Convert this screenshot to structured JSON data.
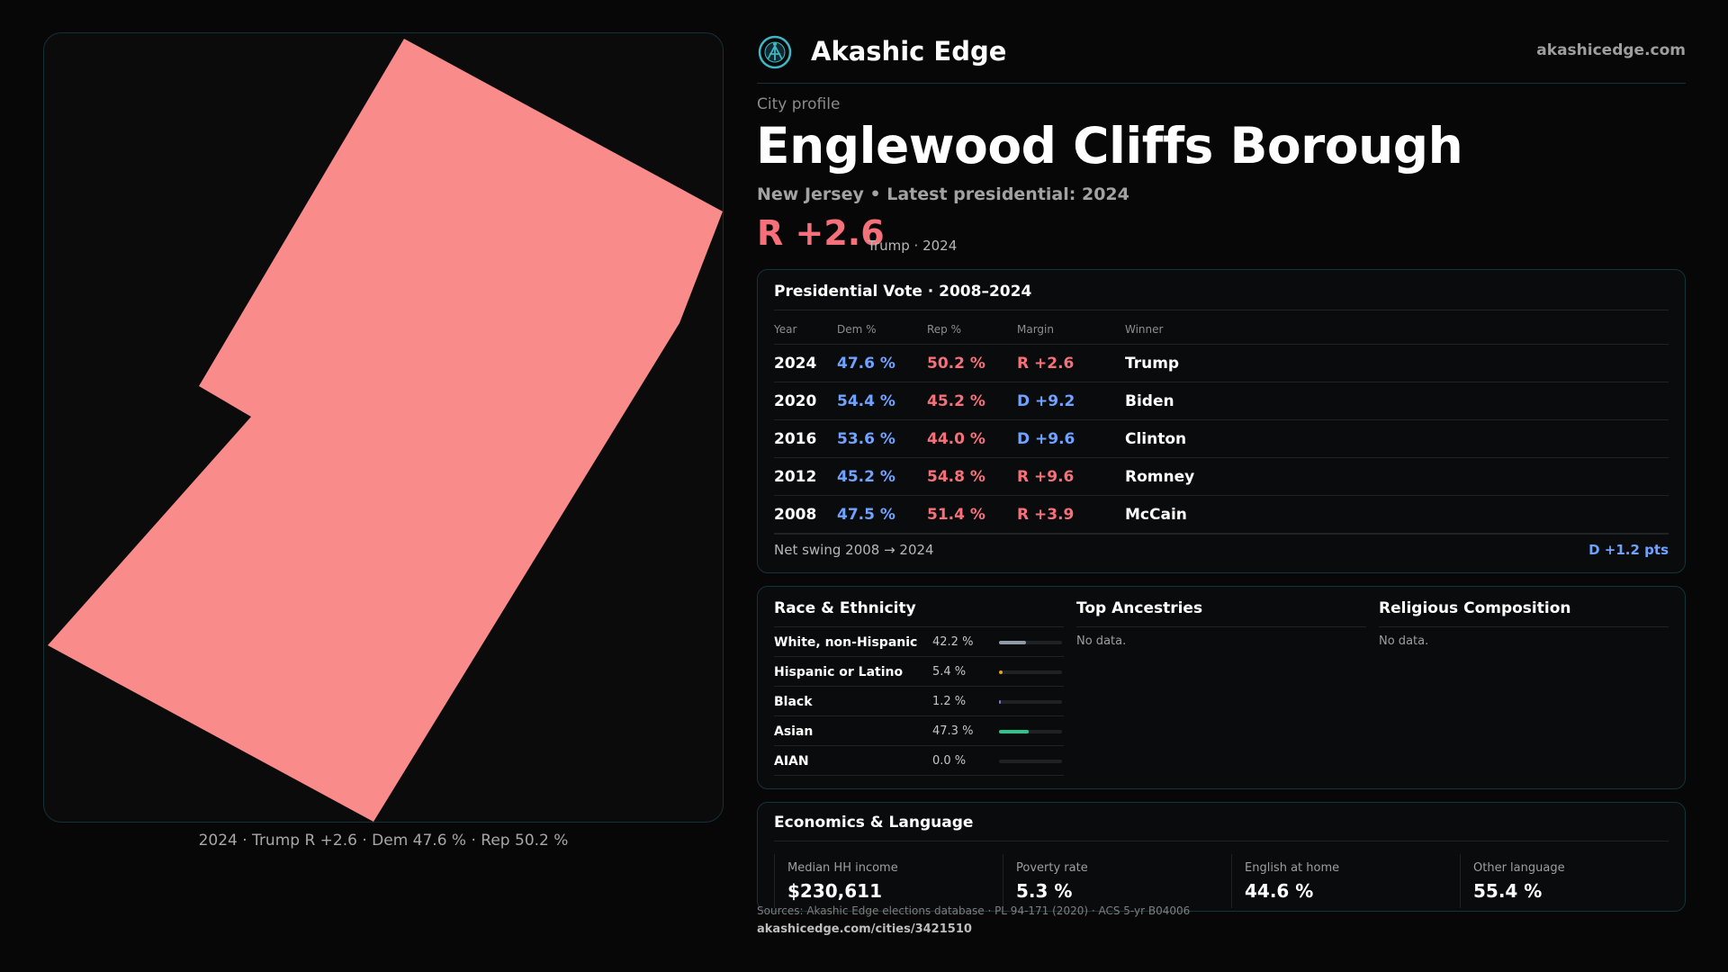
{
  "brand": {
    "name": "Akashic Edge",
    "site": "akashicedge.com"
  },
  "profile": {
    "label": "City profile",
    "city": "Englewood Cliffs Borough",
    "subtitle": "New Jersey • Latest presidential: 2024",
    "margin": "R +2.6",
    "margin_note": "Trump · 2024"
  },
  "map": {
    "fill_color": "#f98b8b",
    "caption": "2024 · Trump R +2.6 · Dem 47.6 % · Rep 50.2 %"
  },
  "vote": {
    "title": "Presidential Vote · 2008–2024",
    "columns": [
      "Year",
      "Dem %",
      "Rep %",
      "Margin",
      "Winner"
    ],
    "rows": [
      {
        "year": "2024",
        "dem": "47.6 %",
        "rep": "50.2 %",
        "margin": "R +2.6",
        "party": "R",
        "winner": "Trump"
      },
      {
        "year": "2020",
        "dem": "54.4 %",
        "rep": "45.2 %",
        "margin": "D +9.2",
        "party": "D",
        "winner": "Biden"
      },
      {
        "year": "2016",
        "dem": "53.6 %",
        "rep": "44.0 %",
        "margin": "D +9.6",
        "party": "D",
        "winner": "Clinton"
      },
      {
        "year": "2012",
        "dem": "45.2 %",
        "rep": "54.8 %",
        "margin": "R +9.6",
        "party": "R",
        "winner": "Romney"
      },
      {
        "year": "2008",
        "dem": "47.5 %",
        "rep": "51.4 %",
        "margin": "R +3.9",
        "party": "R",
        "winner": "McCain"
      }
    ],
    "swing_label": "Net swing 2008 → 2024",
    "swing_value": "D +1.2 pts"
  },
  "race": {
    "title": "Race & Ethnicity",
    "rows": [
      {
        "label": "White, non-Hispanic",
        "pct": "42.2 %",
        "value": 0.422,
        "color": "#8e9aa8"
      },
      {
        "label": "Hispanic or Latino",
        "pct": "5.4 %",
        "value": 0.054,
        "color": "#e3a21a"
      },
      {
        "label": "Black",
        "pct": "1.2 %",
        "value": 0.012,
        "color": "#7a6ff0"
      },
      {
        "label": "Asian",
        "pct": "47.3 %",
        "value": 0.473,
        "color": "#2ec48e"
      },
      {
        "label": "AIAN",
        "pct": "0.0 %",
        "value": 0.0,
        "color": "#c97a3a"
      }
    ]
  },
  "ancestries": {
    "title": "Top Ancestries",
    "empty": "No data."
  },
  "religion": {
    "title": "Religious Composition",
    "empty": "No data."
  },
  "economics": {
    "title": "Economics & Language",
    "stats": [
      {
        "label": "Median HH income",
        "value": "$230,611"
      },
      {
        "label": "Poverty rate",
        "value": "5.3 %"
      },
      {
        "label": "English at home",
        "value": "44.6 %"
      },
      {
        "label": "Other language",
        "value": "55.4 %"
      }
    ]
  },
  "footer": {
    "sources": "Sources: Akashic Edge elections database · PL 94-171 (2020) · ACS 5-yr B04006",
    "url": "akashicedge.com/cities/3421510"
  },
  "colors": {
    "dem": "#6fa3ff",
    "rep": "#f6707a",
    "accent": "#3fb6c4"
  }
}
